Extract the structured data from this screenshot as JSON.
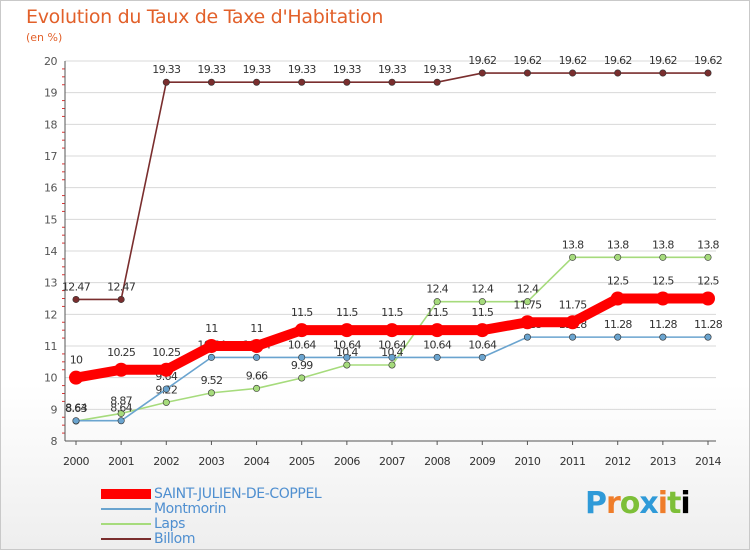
{
  "title": "Evolution du Taux de Taxe d'Habitation",
  "subtitle": "(en %)",
  "brand": "Proxiti",
  "chart_data": {
    "type": "line",
    "title": "Evolution du Taux de Taxe d'Habitation",
    "ylabel": "(en %)",
    "xlabel": "",
    "ylim": [
      8,
      20
    ],
    "yticks": [
      "8",
      "9",
      "10",
      "11",
      "12",
      "13",
      "14",
      "15",
      "16",
      "17",
      "18",
      "19",
      "20"
    ],
    "categories": [
      "2000",
      "2001",
      "2002",
      "2003",
      "2004",
      "2005",
      "2006",
      "2007",
      "2008",
      "2009",
      "2010",
      "2011",
      "2012",
      "2013",
      "2014"
    ],
    "legend_position": "bottom-left",
    "series": [
      {
        "name": "Billom",
        "color": "#7a2e2e",
        "values": [
          12.47,
          12.47,
          19.33,
          19.33,
          19.33,
          19.33,
          19.33,
          19.33,
          19.33,
          19.62,
          19.62,
          19.62,
          19.62,
          19.62,
          19.62
        ],
        "labels": [
          "12.47",
          "12.47",
          "19.33",
          "19.33",
          "19.33",
          "19.33",
          "19.33",
          "19.33",
          "19.33",
          "19.62",
          "19.62",
          "19.62",
          "19.62",
          "19.62",
          "19.62"
        ]
      },
      {
        "name": "Laps",
        "color": "#a6db7c",
        "values": [
          8.63,
          8.87,
          9.22,
          9.52,
          9.66,
          9.99,
          10.4,
          10.4,
          12.4,
          12.4,
          12.4,
          13.8,
          13.8,
          13.8,
          13.8
        ],
        "labels": [
          "8.63",
          "8.87",
          "9.22",
          "9.52",
          "9.66",
          "9.99",
          "10.4",
          "10.4",
          "12.4",
          "12.4",
          "12.4",
          "13.8",
          "13.8",
          "13.8",
          "13.8"
        ]
      },
      {
        "name": "Montmorin",
        "color": "#6aa4cf",
        "values": [
          8.64,
          8.64,
          9.64,
          10.64,
          10.64,
          10.64,
          10.64,
          10.64,
          10.64,
          10.64,
          11.28,
          11.28,
          11.28,
          11.28,
          11.28
        ],
        "labels": [
          "8.64",
          "8.64",
          "9.64",
          "10.64",
          "10.64",
          "10.64",
          "10.64",
          "10.64",
          "10.64",
          "10.64",
          "11.28",
          "11.28",
          "11.28",
          "11.28",
          "11.28"
        ]
      },
      {
        "name": "SAINT-JULIEN-DE-COPPEL",
        "color": "#ff0000",
        "values": [
          10,
          10.25,
          10.25,
          11,
          11,
          11.5,
          11.5,
          11.5,
          11.5,
          11.5,
          11.75,
          11.75,
          12.5,
          12.5,
          12.5
        ],
        "labels": [
          "10",
          "10.25",
          "10.25",
          "11",
          "11",
          "11.5",
          "11.5",
          "11.5",
          "11.5",
          "11.5",
          "11.75",
          "11.75",
          "12.5",
          "12.5",
          "12.5"
        ]
      }
    ],
    "legend": [
      {
        "name": "SAINT-JULIEN-DE-COPPEL",
        "color": "#ff0000",
        "text_color": "#4f8fd0"
      },
      {
        "name": "Montmorin",
        "color": "#6aa4cf",
        "text_color": "#4f8fd0"
      },
      {
        "name": "Laps",
        "color": "#a6db7c",
        "text_color": "#4f8fd0"
      },
      {
        "name": "Billom",
        "color": "#7a2e2e",
        "text_color": "#4f8fd0"
      }
    ]
  }
}
